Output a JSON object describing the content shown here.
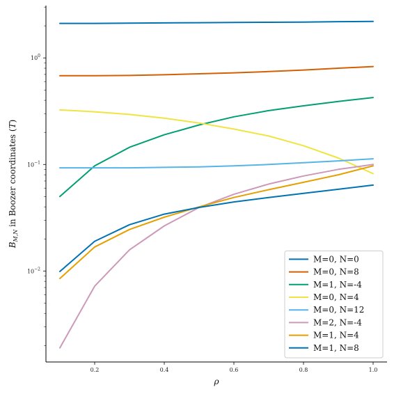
{
  "chart_data": {
    "type": "line",
    "xlabel": "ρ",
    "ylabel": "B_{M,N} in Boozer coordinates (T)",
    "ylabel_main": "B",
    "ylabel_sub": "M,N",
    "ylabel_rest": " in Boozer coordinates (",
    "ylabel_unit": "T",
    "ylabel_close": ")",
    "yscale": "log",
    "xlim": [
      0.06,
      1.04
    ],
    "ylim": [
      0.0014,
      3.1
    ],
    "xticks": [
      0.2,
      0.4,
      0.6,
      0.8,
      1.0
    ],
    "xtick_labels": [
      "0.2",
      "0.4",
      "0.6",
      "0.8",
      "1.0"
    ],
    "yticks": [
      {
        "base": "10",
        "exp": "0",
        "value": 1
      },
      {
        "base": "10",
        "exp": "−1",
        "value": 0.1
      },
      {
        "base": "10",
        "exp": "−2",
        "value": 0.01
      }
    ],
    "grid": false,
    "legend_position": "lower-right",
    "x": [
      0.1,
      0.2,
      0.3,
      0.4,
      0.5,
      0.6,
      0.7,
      0.8,
      0.9,
      1.0
    ],
    "series": [
      {
        "name": "M=0, N=0",
        "color": "#0072b2",
        "values": [
          2.11,
          2.11,
          2.12,
          2.13,
          2.14,
          2.15,
          2.16,
          2.17,
          2.19,
          2.2
        ]
      },
      {
        "name": "M=0, N=8",
        "color": "#d55e00",
        "values": [
          0.68,
          0.68,
          0.685,
          0.695,
          0.71,
          0.725,
          0.745,
          0.77,
          0.8,
          0.83
        ]
      },
      {
        "name": "M=1, N=-4",
        "color": "#009e73",
        "values": [
          0.05,
          0.097,
          0.145,
          0.19,
          0.235,
          0.28,
          0.32,
          0.355,
          0.39,
          0.425
        ]
      },
      {
        "name": "M=0, N=4",
        "color": "#f0e442",
        "values": [
          0.325,
          0.312,
          0.295,
          0.272,
          0.245,
          0.215,
          0.185,
          0.15,
          0.115,
          0.082
        ]
      },
      {
        "name": "M=0, N=12",
        "color": "#56b4e9",
        "values": [
          0.093,
          0.093,
          0.093,
          0.094,
          0.095,
          0.097,
          0.1,
          0.104,
          0.108,
          0.113
        ]
      },
      {
        "name": "M=2, N=-4",
        "color": "#cc99b8",
        "values": [
          0.0019,
          0.0072,
          0.0158,
          0.0265,
          0.0395,
          0.0525,
          0.0655,
          0.078,
          0.09,
          0.1
        ]
      },
      {
        "name": "M=1, N=4",
        "color": "#e69f00",
        "values": [
          0.0085,
          0.0168,
          0.0245,
          0.032,
          0.04,
          0.049,
          0.058,
          0.068,
          0.08,
          0.097
        ]
      },
      {
        "name": "M=1, N=8",
        "color": "#0072b2",
        "values": [
          0.0099,
          0.019,
          0.0272,
          0.0342,
          0.0395,
          0.0445,
          0.049,
          0.0535,
          0.0585,
          0.064
        ]
      }
    ]
  }
}
